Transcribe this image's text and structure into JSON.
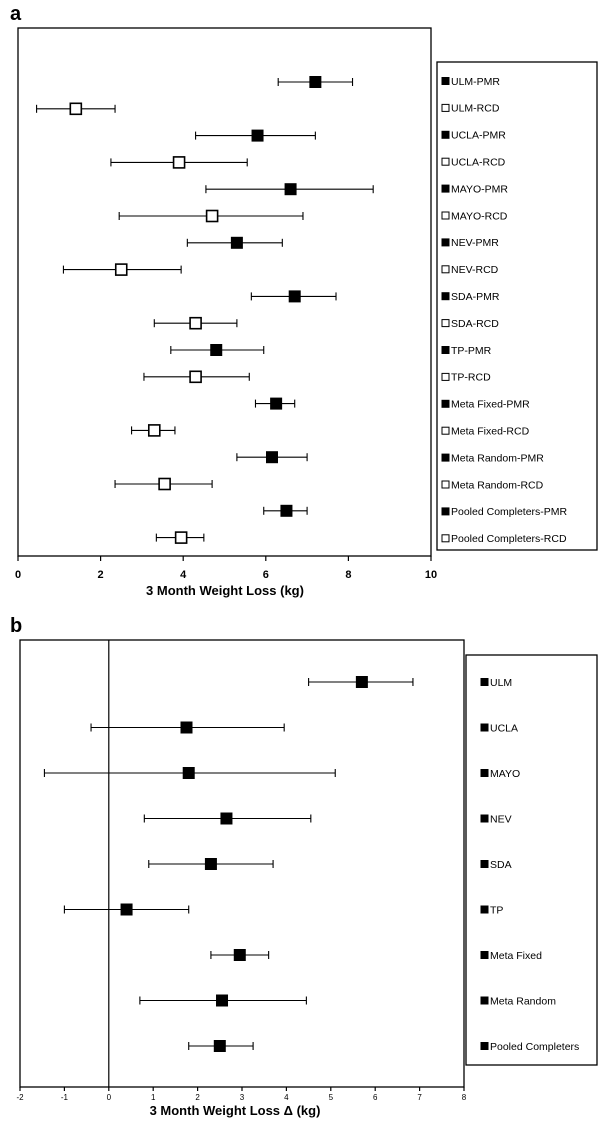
{
  "chart_data": [
    {
      "type": "forest",
      "panel_label": "a",
      "xlabel": "3 Month Weight Loss (kg)",
      "xlim": [
        0,
        10
      ],
      "xticks": [
        "0",
        "2",
        "4",
        "6",
        "8",
        "10"
      ],
      "grid": false,
      "legend_position": "right",
      "series": [
        {
          "name": "ULM-PMR",
          "marker": "filled",
          "value": 7.2,
          "lo": 6.3,
          "hi": 8.1
        },
        {
          "name": "ULM-RCD",
          "marker": "open",
          "value": 1.4,
          "lo": 0.45,
          "hi": 2.35
        },
        {
          "name": "UCLA-PMR",
          "marker": "filled",
          "value": 5.8,
          "lo": 4.3,
          "hi": 7.2
        },
        {
          "name": "UCLA-RCD",
          "marker": "open",
          "value": 3.9,
          "lo": 2.25,
          "hi": 5.55
        },
        {
          "name": "MAYO-PMR",
          "marker": "filled",
          "value": 6.6,
          "lo": 4.55,
          "hi": 8.6
        },
        {
          "name": "MAYO-RCD",
          "marker": "open",
          "value": 4.7,
          "lo": 2.45,
          "hi": 6.9
        },
        {
          "name": "NEV-PMR",
          "marker": "filled",
          "value": 5.3,
          "lo": 4.1,
          "hi": 6.4
        },
        {
          "name": "NEV-RCD",
          "marker": "open",
          "value": 2.5,
          "lo": 1.1,
          "hi": 3.95
        },
        {
          "name": "SDA-PMR",
          "marker": "filled",
          "value": 6.7,
          "lo": 5.65,
          "hi": 7.7
        },
        {
          "name": "SDA-RCD",
          "marker": "open",
          "value": 4.3,
          "lo": 3.3,
          "hi": 5.3
        },
        {
          "name": "TP-PMR",
          "marker": "filled",
          "value": 4.8,
          "lo": 3.7,
          "hi": 5.95
        },
        {
          "name": "TP-RCD",
          "marker": "open",
          "value": 4.3,
          "lo": 3.05,
          "hi": 5.6
        },
        {
          "name": "Meta Fixed-PMR",
          "marker": "filled",
          "value": 6.25,
          "lo": 5.75,
          "hi": 6.7
        },
        {
          "name": "Meta Fixed-RCD",
          "marker": "open",
          "value": 3.3,
          "lo": 2.75,
          "hi": 3.8
        },
        {
          "name": "Meta Random-PMR",
          "marker": "filled",
          "value": 6.15,
          "lo": 5.3,
          "hi": 7.0
        },
        {
          "name": "Meta Random-RCD",
          "marker": "open",
          "value": 3.55,
          "lo": 2.35,
          "hi": 4.7
        },
        {
          "name": "Pooled Completers-PMR",
          "marker": "filled",
          "value": 6.5,
          "lo": 5.95,
          "hi": 7.0
        },
        {
          "name": "Pooled Completers-RCD",
          "marker": "open",
          "value": 3.95,
          "lo": 3.35,
          "hi": 4.5
        }
      ]
    },
    {
      "type": "forest",
      "panel_label": "b",
      "xlabel": "3 Month Weight Loss Δ (kg)",
      "xlim": [
        -2,
        8
      ],
      "xticks": [
        "-2",
        "-1",
        "0",
        "1",
        "2",
        "3",
        "4",
        "5",
        "6",
        "7",
        "8"
      ],
      "reference_line": 0,
      "grid": false,
      "legend_position": "right",
      "series": [
        {
          "name": "ULM",
          "marker": "filled",
          "value": 5.7,
          "lo": 4.5,
          "hi": 6.85
        },
        {
          "name": "UCLA",
          "marker": "filled",
          "value": 1.75,
          "lo": -0.4,
          "hi": 3.95
        },
        {
          "name": "MAYO",
          "marker": "filled",
          "value": 1.8,
          "lo": -1.45,
          "hi": 5.1
        },
        {
          "name": "NEV",
          "marker": "filled",
          "value": 2.65,
          "lo": 0.8,
          "hi": 4.55
        },
        {
          "name": "SDA",
          "marker": "filled",
          "value": 2.3,
          "lo": 0.9,
          "hi": 3.7
        },
        {
          "name": "TP",
          "marker": "filled",
          "value": 0.4,
          "lo": -1.0,
          "hi": 1.8
        },
        {
          "name": "Meta Fixed",
          "marker": "filled",
          "value": 2.95,
          "lo": 2.3,
          "hi": 3.6
        },
        {
          "name": "Meta Random",
          "marker": "filled",
          "value": 2.55,
          "lo": 0.7,
          "hi": 4.45
        },
        {
          "name": "Pooled Completers",
          "marker": "filled",
          "value": 2.5,
          "lo": 1.8,
          "hi": 3.25
        }
      ]
    }
  ]
}
